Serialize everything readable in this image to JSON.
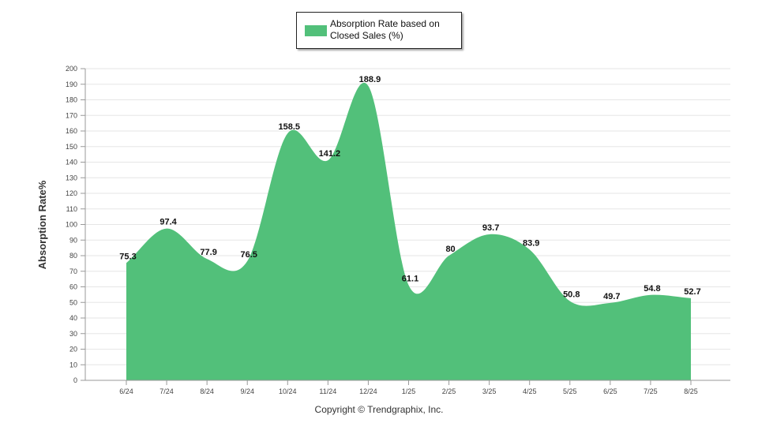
{
  "chart_data": {
    "type": "area",
    "legend": {
      "label": "Absorption Rate based on Closed Sales (%)",
      "position": "top-center"
    },
    "ylabel": "Absorption Rate%",
    "xlabel": "",
    "ylim": [
      0,
      200
    ],
    "ytick_step": 10,
    "grid": true,
    "categories": [
      "6/24",
      "7/24",
      "8/24",
      "9/24",
      "10/24",
      "11/24",
      "12/24",
      "1/25",
      "2/25",
      "3/25",
      "4/25",
      "5/25",
      "6/25",
      "7/25",
      "8/25"
    ],
    "series": [
      {
        "name": "Absorption Rate based on Closed Sales (%)",
        "values": [
          75.3,
          97.4,
          77.9,
          76.5,
          158.5,
          141.2,
          188.9,
          61.1,
          80,
          93.7,
          83.9,
          50.8,
          49.7,
          54.8,
          52.7
        ],
        "labels": [
          "75.3",
          "97.4",
          "77.9",
          "76.5",
          "158.5",
          "141.2",
          "188.9",
          "61.1",
          "80",
          "93.7",
          "83.9",
          "50.8",
          "49.7",
          "54.8",
          "52.7"
        ]
      }
    ],
    "colors": {
      "fill": "#52c07a",
      "grid": "#e6e6e6",
      "axis": "#999999"
    }
  },
  "footer": {
    "copyright": "Copyright © Trendgraphix, Inc."
  }
}
